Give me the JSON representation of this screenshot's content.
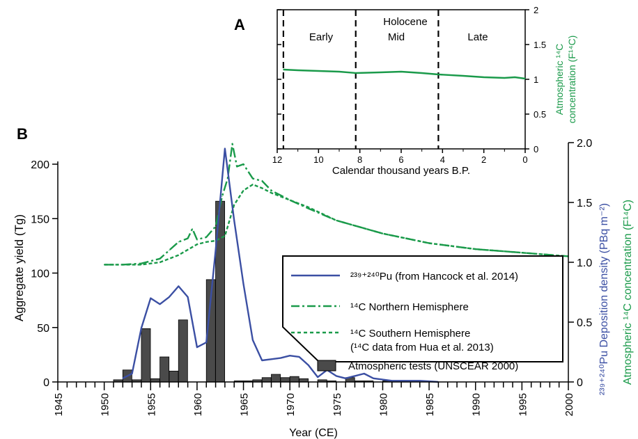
{
  "chart_data": [
    {
      "panel": "A",
      "type": "line",
      "xlabel": "Calendar thousand years B.P.",
      "ylabel": [
        "Atmospheric ¹⁴C",
        "concentration (F¹⁴C)"
      ],
      "x_ticks": [
        "12",
        "10",
        "8",
        "6",
        "4",
        "2",
        "0"
      ],
      "y_ticks": [
        "0",
        "0.5",
        "1",
        "1.5",
        "2"
      ],
      "xlim": [
        12,
        0
      ],
      "ylim": [
        0,
        2
      ],
      "epoch_title": "Holocene",
      "periods": [
        "Early",
        "Mid",
        "Late"
      ],
      "boundaries_kyr_bp": [
        11.7,
        8.2,
        4.2
      ],
      "series": [
        {
          "name": "¹⁴C",
          "color": "#1a9a4a",
          "x": [
            11.7,
            11.0,
            10.0,
            9.0,
            8.2,
            7.0,
            6.0,
            5.0,
            4.2,
            3.0,
            2.0,
            1.0,
            0.5,
            0.0
          ],
          "y": [
            1.14,
            1.13,
            1.12,
            1.11,
            1.09,
            1.1,
            1.11,
            1.09,
            1.07,
            1.05,
            1.03,
            1.02,
            1.03,
            1.01
          ]
        }
      ]
    },
    {
      "panel": "B",
      "type": "bar+line",
      "xlabel": "Year (CE)",
      "ylabel_left": "Aggregate yield (Tg)",
      "ylabel_pu": "²³⁹⁺²⁴⁰Pu Deposition density (PBq m⁻²)",
      "ylabel_c14": "Atmospheric ¹⁴C concentration (F¹⁴C)",
      "x_ticks": [
        "1945",
        "1950",
        "1955",
        "1960",
        "1965",
        "1970",
        "1975",
        "1980",
        "1985",
        "1990",
        "1995",
        "2000"
      ],
      "y_left_ticks": [
        "0",
        "50",
        "100",
        "150",
        "200"
      ],
      "y_right_ticks": [
        "0",
        "0.5",
        "1.0",
        "1.5",
        "2.0"
      ],
      "xlim": [
        1945,
        2000
      ],
      "ylim_left": [
        0,
        218
      ],
      "ylim_right": [
        0,
        2.0
      ],
      "legend": [
        {
          "key": "pu",
          "label": "²³⁹⁺²⁴⁰Pu (from Hancock et al. 2014)"
        },
        {
          "key": "nh",
          "label": "¹⁴C Northern Hemisphere"
        },
        {
          "key": "sh",
          "label": "¹⁴C Southern Hemisphere"
        },
        {
          "key": "sh_note",
          "label": "(¹⁴C data from Hua et al. 2013)"
        },
        {
          "key": "tests",
          "label": "Atmospheric tests (UNSCEAR 2000)"
        }
      ],
      "bars": {
        "name": "Atmospheric tests (UNSCEAR 2000)",
        "color": "#4a4a4a",
        "x": [
          1951,
          1952,
          1953,
          1954,
          1955,
          1956,
          1957,
          1958,
          1961,
          1962,
          1964,
          1965,
          1966,
          1967,
          1968,
          1969,
          1970,
          1971,
          1973,
          1974,
          1976,
          1977,
          1978,
          1980
        ],
        "values": [
          2,
          11,
          2,
          49,
          3,
          23,
          10,
          57,
          94,
          166,
          1,
          1,
          2,
          4,
          7,
          4,
          5,
          3,
          2,
          1,
          4,
          1,
          1,
          1
        ]
      },
      "series": [
        {
          "name": "²³⁹⁺²⁴⁰Pu",
          "axis": "right",
          "color": "#3b4fa3",
          "dash": "solid",
          "x": [
            1952,
            1953,
            1954,
            1955,
            1956,
            1957,
            1958,
            1959,
            1960,
            1961,
            1962,
            1963,
            1964,
            1965,
            1966,
            1967,
            1968,
            1969,
            1970,
            1971,
            1972,
            1973,
            1974,
            1975,
            1976,
            1977,
            1978,
            1979,
            1980,
            1981,
            1982,
            1983,
            1984,
            1985,
            1986
          ],
          "y": [
            0.03,
            0.07,
            0.45,
            0.7,
            0.65,
            0.71,
            0.8,
            0.71,
            0.29,
            0.33,
            1.1,
            1.95,
            1.35,
            0.82,
            0.35,
            0.18,
            0.19,
            0.2,
            0.22,
            0.21,
            0.14,
            0.04,
            0.1,
            0.05,
            0.03,
            0.05,
            0.07,
            0.03,
            0.02,
            0.01,
            0.01,
            0.01,
            0.01,
            0.005,
            0.0
          ]
        },
        {
          "name": "¹⁴C Northern Hemisphere",
          "axis": "right",
          "color": "#1a9a4a",
          "dash": "dashdot",
          "x": [
            1950,
            1952,
            1954,
            1956,
            1957,
            1958,
            1959,
            1959.5,
            1960,
            1961,
            1962,
            1962.7,
            1963.3,
            1963.8,
            1964.3,
            1965,
            1966,
            1967,
            1968,
            1970,
            1972,
            1975,
            1980,
            1985,
            1990,
            1995,
            2000
          ],
          "y": [
            0.98,
            0.98,
            0.99,
            1.03,
            1.1,
            1.17,
            1.2,
            1.28,
            1.19,
            1.21,
            1.3,
            1.55,
            1.7,
            1.99,
            1.8,
            1.82,
            1.7,
            1.68,
            1.6,
            1.52,
            1.45,
            1.35,
            1.24,
            1.16,
            1.11,
            1.08,
            1.05
          ]
        },
        {
          "name": "¹⁴C Southern Hemisphere",
          "axis": "right",
          "color": "#1a9a4a",
          "dash": "dotted",
          "x": [
            1950,
            1952,
            1954,
            1956,
            1958,
            1960,
            1961,
            1962,
            1963,
            1964,
            1965,
            1966,
            1967,
            1968,
            1970,
            1972,
            1975,
            1980,
            1985,
            1990,
            1995,
            2000
          ],
          "y": [
            0.98,
            0.98,
            0.98,
            1.0,
            1.06,
            1.15,
            1.17,
            1.18,
            1.22,
            1.48,
            1.6,
            1.65,
            1.62,
            1.58,
            1.52,
            1.46,
            1.35,
            1.24,
            1.16,
            1.11,
            1.08,
            1.05
          ]
        }
      ]
    }
  ]
}
